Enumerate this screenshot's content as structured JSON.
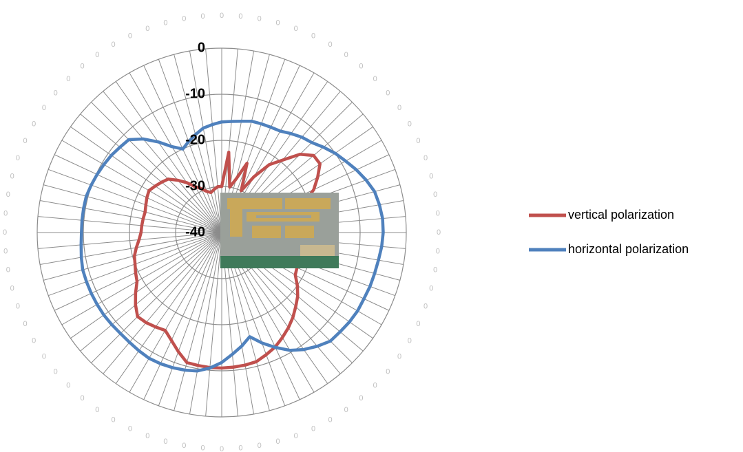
{
  "chart_data": {
    "type": "radar",
    "categories": [
      "0",
      "0",
      "0",
      "0",
      "0",
      "0",
      "0",
      "0",
      "0",
      "0",
      "0",
      "0",
      "0",
      "0",
      "0",
      "0",
      "0",
      "0",
      "0",
      "0",
      "0",
      "0",
      "0",
      "0",
      "0",
      "0",
      "0",
      "0",
      "0",
      "0",
      "0",
      "0",
      "0",
      "0",
      "0",
      "0",
      "0",
      "0",
      "0",
      "0",
      "0",
      "0",
      "0",
      "0",
      "0",
      "0",
      "0",
      "0",
      "0",
      "0",
      "0",
      "0",
      "0",
      "0",
      "0",
      "0",
      "0",
      "0",
      "0",
      "0",
      "0",
      "0",
      "0",
      "0",
      "0",
      "0",
      "0",
      "0",
      "0",
      "0",
      "0",
      "0"
    ],
    "series": [
      {
        "name": "vertical polarization",
        "color": "#c0504d",
        "values": [
          -30,
          -22.5,
          -30,
          -28,
          -24,
          -30,
          -26,
          -22,
          -19.5,
          -16,
          -14,
          -14,
          -16,
          -18,
          -21,
          -23,
          -24,
          -25,
          -25.5,
          -25.5,
          -25,
          -24,
          -23,
          -22,
          -21.6,
          -20,
          -18.5,
          -17.3,
          -16,
          -14.8,
          -13.7,
          -12.6,
          -11.8,
          -11,
          -10.8,
          -10.7,
          -10.6,
          -10.6,
          -10.7,
          -10.8,
          -12.5,
          -14.2,
          -15.5,
          -15,
          -14.5,
          -14.2,
          -15.6,
          -17.2,
          -18.8,
          -19.4,
          -20,
          -20.4,
          -21.2,
          -22,
          -22.5,
          -22.6,
          -22.7,
          -22.8,
          -22.5,
          -22.1,
          -21.8,
          -22.4,
          -23,
          -23.6,
          -25.2,
          -26.8,
          -28.5,
          -29.5,
          -30.5,
          -31,
          -30.5,
          -30
        ]
      },
      {
        "name": "horizontal polarization",
        "color": "#4f81bd",
        "values": [
          -16,
          -15.8,
          -15.5,
          -15,
          -14.9,
          -14.8,
          -14.6,
          -13.8,
          -13,
          -12.4,
          -11.2,
          -10,
          -9,
          -7.8,
          -6.7,
          -5.7,
          -5.3,
          -5,
          -5,
          -5.2,
          -5.5,
          -5.7,
          -5.8,
          -6,
          -6,
          -6.2,
          -6.5,
          -6.7,
          -7.8,
          -9,
          -10.5,
          -12.5,
          -14.5,
          -16.6,
          -15,
          -13.5,
          -11.8,
          -10.5,
          -9.5,
          -9.1,
          -8.8,
          -8.6,
          -8.5,
          -8.7,
          -8.9,
          -9,
          -8.9,
          -8.8,
          -8.8,
          -8.8,
          -8.8,
          -8.8,
          -9.1,
          -9.4,
          -9.6,
          -9.6,
          -9.6,
          -9.6,
          -9.9,
          -10.2,
          -10.5,
          -10.8,
          -11.2,
          -11.5,
          -13.5,
          -16,
          -18.5,
          -20,
          -19,
          -18,
          -17,
          -16.5
        ]
      }
    ],
    "ylim": [
      -40,
      0
    ],
    "yticks": [
      -40,
      -30,
      -20,
      -10,
      0
    ],
    "grid": true,
    "legend": "right"
  }
}
